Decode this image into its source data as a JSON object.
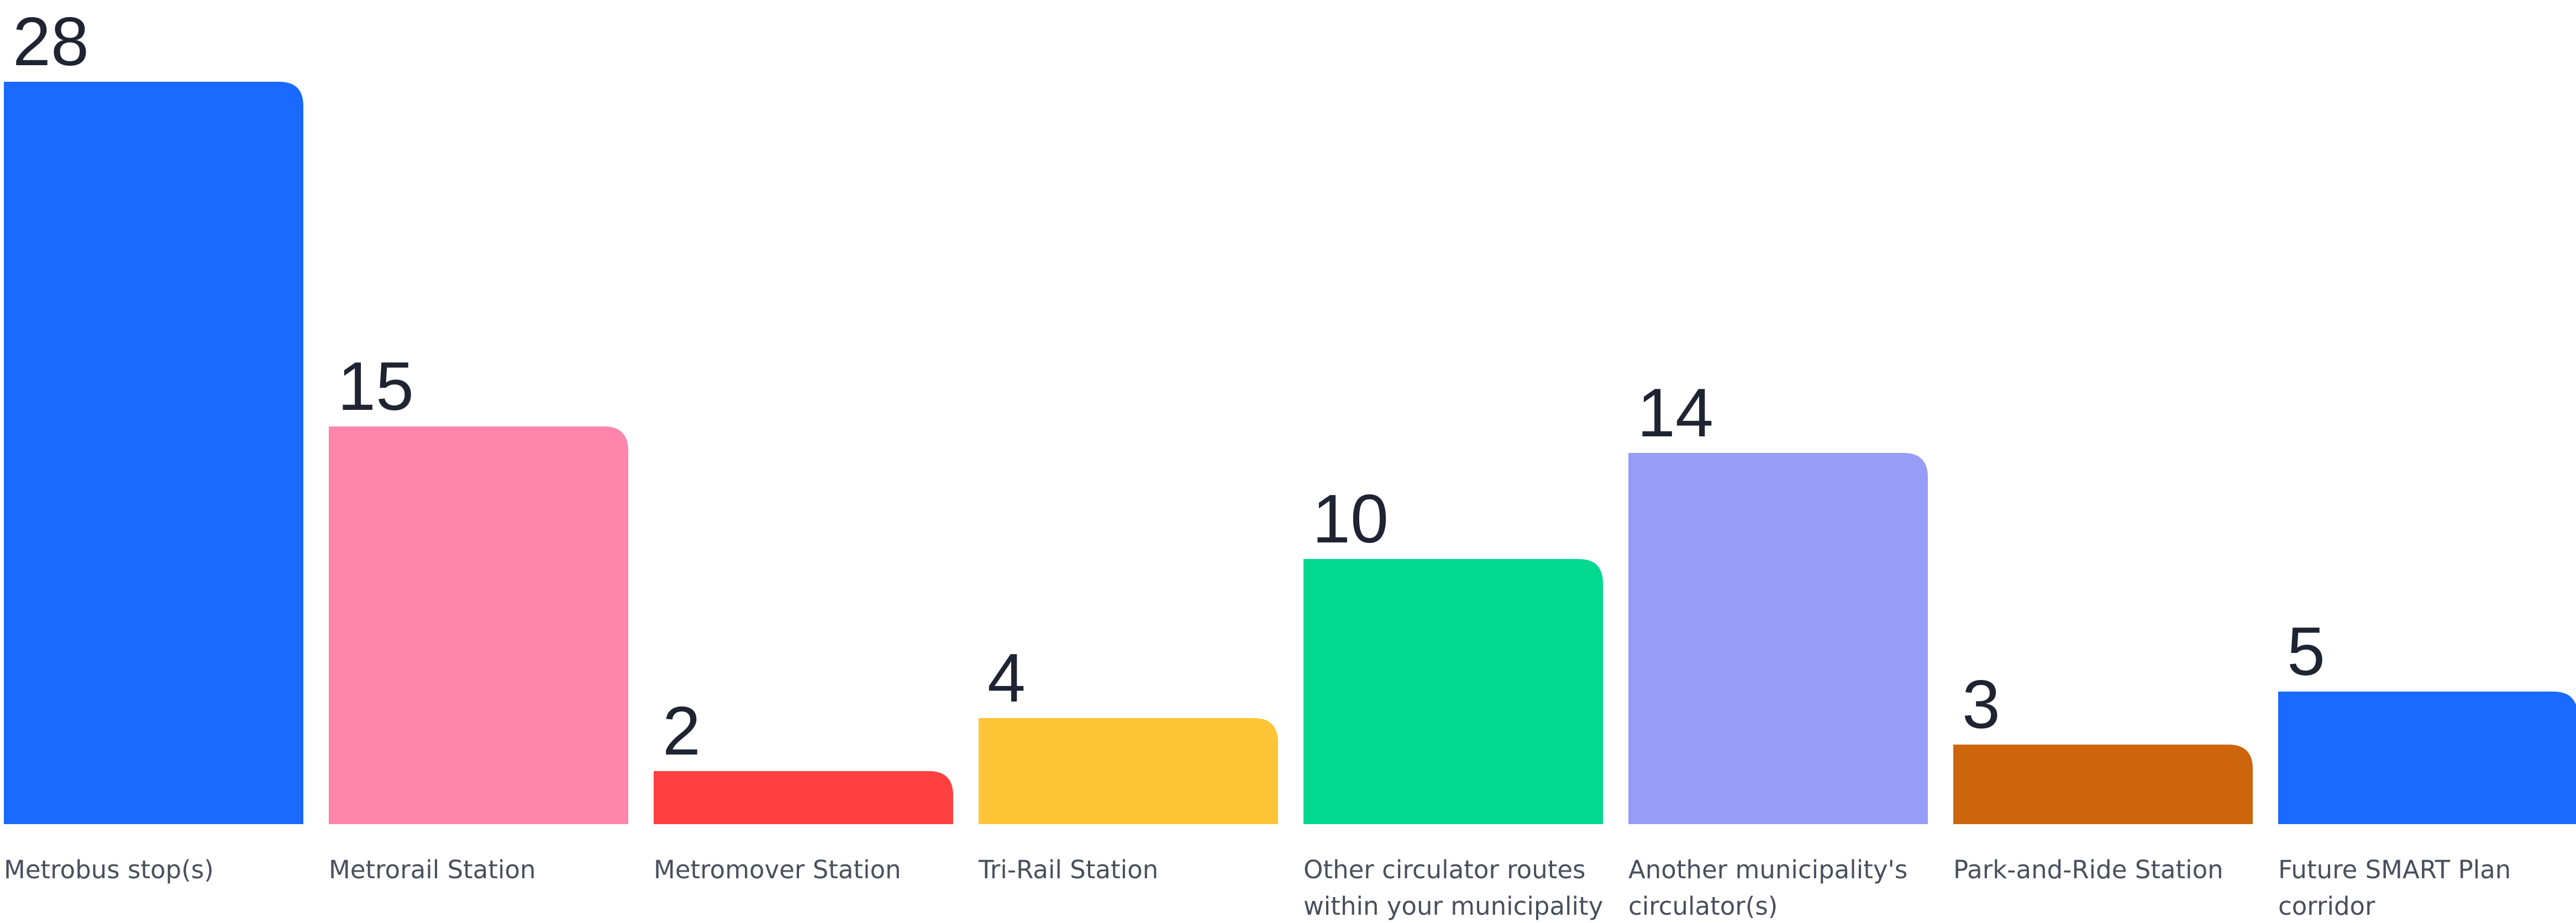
{
  "chart_data": {
    "type": "bar",
    "title": "",
    "xlabel": "",
    "ylabel": "",
    "ylim": [
      0,
      28
    ],
    "grid": false,
    "legend": "none",
    "categories": [
      "Metrobus stop(s)",
      "Metrorail Station",
      "Metromover Station",
      "Tri-Rail Station",
      "Other circulator routes within your municipality",
      "Another municipality's circulator(s)",
      "Park-and-Ride Station",
      "Future SMART Plan corridor"
    ],
    "category_lines": [
      [
        "Metrobus stop(s)"
      ],
      [
        "Metrorail Station"
      ],
      [
        "Metromover Station"
      ],
      [
        "Tri-Rail Station"
      ],
      [
        "Other circulator routes",
        "within your municipality"
      ],
      [
        "Another municipality's",
        "circulator(s)"
      ],
      [
        "Park-and-Ride Station"
      ],
      [
        "Future SMART Plan",
        "corridor"
      ]
    ],
    "values": [
      28,
      15,
      2,
      4,
      10,
      14,
      3,
      5
    ],
    "colors": [
      "#1a6aff",
      "#ff85ad",
      "#ff4040",
      "#fec537",
      "#00d98f",
      "#979cf7",
      "#cc650c",
      "#1a6aff"
    ]
  }
}
